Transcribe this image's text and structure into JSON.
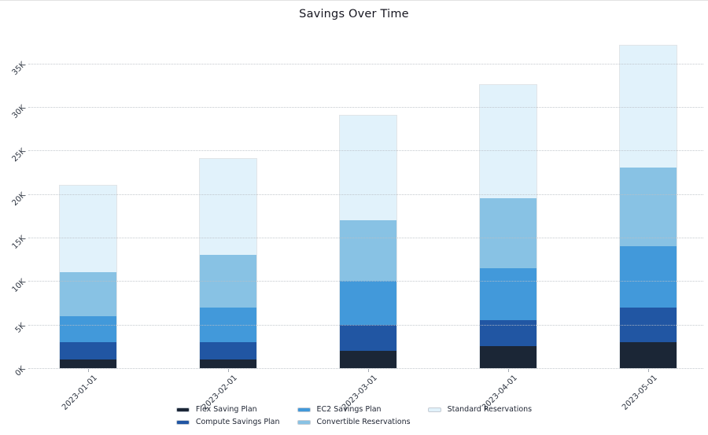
{
  "chart_data": {
    "type": "bar",
    "stacked": true,
    "title": "Savings Over Time",
    "categories": [
      "2023-01-01",
      "2023-02-01",
      "2023-03-01",
      "2023-04-01",
      "2023-05-01"
    ],
    "series": [
      {
        "name": "Flex Saving Plan",
        "color": "#1b2636",
        "values": [
          1000,
          1000,
          2000,
          2500,
          3000
        ]
      },
      {
        "name": "Compute Savings Plan",
        "color": "#2156a3",
        "values": [
          2000,
          2000,
          3000,
          3000,
          4000
        ]
      },
      {
        "name": "EC2 Savings Plan",
        "color": "#4299da",
        "values": [
          3000,
          4000,
          5000,
          6000,
          7000
        ]
      },
      {
        "name": "Convertible Reservations",
        "color": "#88c2e4",
        "values": [
          5000,
          6000,
          7000,
          8000,
          9000
        ]
      },
      {
        "name": "Standard Reservations",
        "color": "#e1f2fb",
        "values": [
          10000,
          11000,
          12000,
          13000,
          14000
        ]
      }
    ],
    "stack_totals": [
      21000,
      24000,
      29000,
      32500,
      37000
    ],
    "ytick_labels": [
      "0K",
      "5K",
      "10K",
      "15K",
      "20K",
      "25K",
      "30K",
      "35K"
    ],
    "ytick_values": [
      0,
      5000,
      10000,
      15000,
      20000,
      25000,
      30000,
      35000
    ],
    "ylim": [
      0,
      38500
    ],
    "xlabel": "",
    "ylabel": "",
    "grid": "horizontal-dotted-over-bars",
    "tick_rotation": 45,
    "legend_position": "bottom-center",
    "legend_columns": [
      [
        "Flex Saving Plan",
        "Compute Savings Plan"
      ],
      [
        "EC2 Savings Plan",
        "Convertible Reservations"
      ],
      [
        "Standard Reservations"
      ]
    ]
  }
}
